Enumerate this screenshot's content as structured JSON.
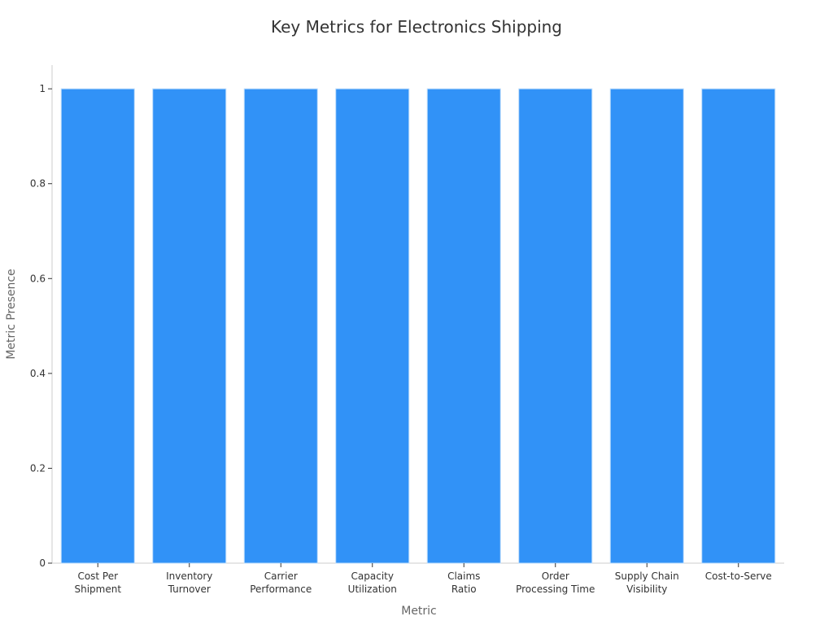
{
  "chart_data": {
    "type": "bar",
    "title": "Key Metrics for Electronics Shipping",
    "xlabel": "Metric",
    "ylabel": "Metric Presence",
    "categories": [
      [
        "Cost Per",
        "Shipment"
      ],
      [
        "Inventory",
        "Turnover"
      ],
      [
        "Carrier",
        "Performance"
      ],
      [
        "Capacity",
        "Utilization"
      ],
      [
        "Claims",
        "Ratio"
      ],
      [
        "Order",
        "Processing Time"
      ],
      [
        "Supply Chain",
        "Visibility"
      ],
      [
        "Cost-to-Serve"
      ]
    ],
    "values": [
      1,
      1,
      1,
      1,
      1,
      1,
      1,
      1
    ],
    "ylim": [
      0,
      1.05
    ],
    "yticks": [
      "0",
      "0.2",
      "0.4",
      "0.6",
      "0.8",
      "1"
    ],
    "ytick_values": [
      0,
      0.2,
      0.4,
      0.6,
      0.8,
      1
    ],
    "grid": false,
    "legend": "none",
    "colors": {
      "bar": "#3192f7",
      "bar_edge": "#bcdcfb",
      "axis": "#cccccc",
      "text": "#333333",
      "axis_label": "#666666"
    }
  }
}
